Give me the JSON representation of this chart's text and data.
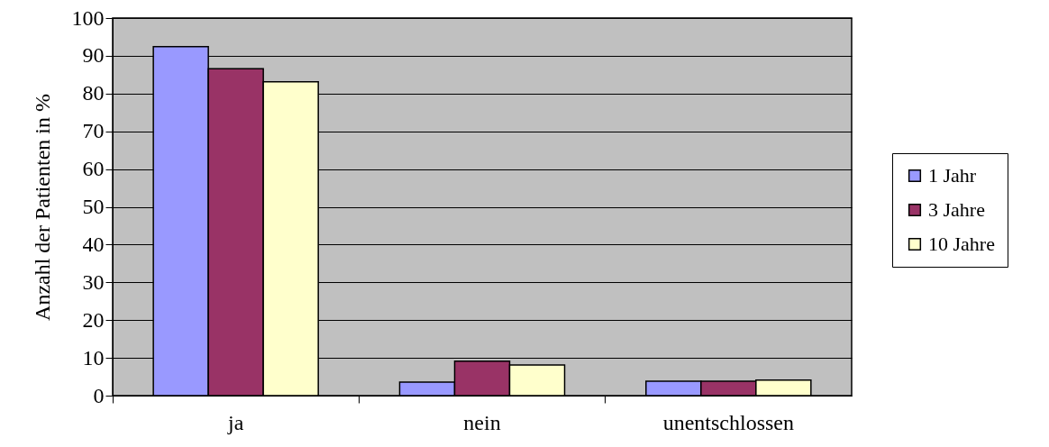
{
  "chart_data": {
    "type": "bar",
    "ylabel": "Anzahl der Patienten in %",
    "categories": [
      "ja",
      "nein",
      "unentschlossen"
    ],
    "series": [
      {
        "name": "1 Jahr",
        "color": "#9999ff",
        "values": [
          92.4,
          3.6,
          3.8
        ]
      },
      {
        "name": "3 Jahre",
        "color": "#993366",
        "values": [
          86.6,
          9.1,
          3.8
        ]
      },
      {
        "name": "10 Jahre",
        "color": "#ffffcc",
        "values": [
          83.1,
          8.1,
          4.1
        ]
      }
    ],
    "ylim": [
      0,
      100
    ],
    "yticks": [
      0,
      10,
      20,
      30,
      40,
      50,
      60,
      70,
      80,
      90,
      100
    ],
    "grid": "y",
    "legend": "right"
  }
}
